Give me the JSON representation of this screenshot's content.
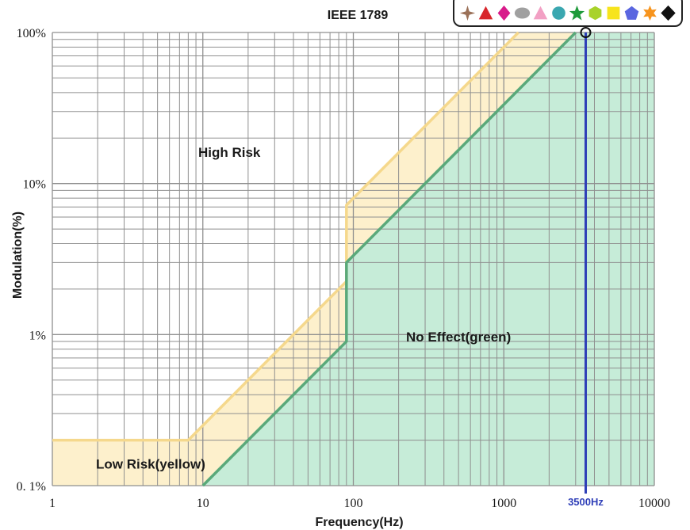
{
  "chart_data": {
    "type": "area",
    "title": "IEEE 1789",
    "xlabel": "Frequency(Hz)",
    "ylabel": "Modulation(%)",
    "xscale": "log",
    "yscale": "log",
    "xlim": [
      1,
      10000
    ],
    "ylim": [
      0.1,
      100
    ],
    "x_ticks": [
      {
        "value": 1,
        "label": "1"
      },
      {
        "value": 10,
        "label": "10"
      },
      {
        "value": 100,
        "label": "100"
      },
      {
        "value": 1000,
        "label": "1000"
      },
      {
        "value": 10000,
        "label": "10000"
      }
    ],
    "y_ticks": [
      {
        "value": 0.1,
        "label": "0. 1%"
      },
      {
        "value": 1,
        "label": "1%"
      },
      {
        "value": 10,
        "label": "10%"
      },
      {
        "value": 100,
        "label": "100%"
      }
    ],
    "grid": true,
    "series": [
      {
        "name": "",
        "color": "#f5d88c",
        "fill": "#fdf0cc",
        "points": [
          [
            1,
            0.2
          ],
          [
            8,
            0.2
          ],
          [
            90,
            2.25
          ],
          [
            90,
            7.2
          ],
          [
            1250,
            100
          ]
        ]
      },
      {
        "name": "",
        "color": "#5aa97a",
        "fill": "#c6ecd8",
        "points": [
          [
            10,
            0.1
          ],
          [
            90,
            0.9
          ],
          [
            90,
            3.0
          ],
          [
            3000,
            100
          ]
        ]
      }
    ],
    "regions": [
      {
        "text": "High Risk",
        "x": 15,
        "y": 15
      },
      {
        "text": "No Effect(green)",
        "x": 500,
        "y": 0.9
      },
      {
        "text": "Low Risk(yellow)",
        "x": 4.5,
        "y": 0.13
      }
    ],
    "marker": {
      "x": 3500,
      "label": "3500Hz",
      "color": "#2f3fb8"
    }
  },
  "palette": {
    "icons": [
      "brown-four-point-star-icon",
      "red-triangle-icon",
      "magenta-diamond-icon",
      "gray-ellipse-icon",
      "pink-triangle-icon",
      "teal-circle-icon",
      "green-star-icon",
      "lime-hexagon-icon",
      "yellow-square-icon",
      "blue-pentagon-icon",
      "orange-six-point-star-icon",
      "black-diamond-icon"
    ],
    "colors": [
      "#9b7158",
      "#d8262b",
      "#d81b8a",
      "#a0a0a0",
      "#f2a0c4",
      "#3aa7b0",
      "#1e9a3a",
      "#a8d22a",
      "#f7e41c",
      "#5a66e0",
      "#f7941d",
      "#111111"
    ]
  }
}
